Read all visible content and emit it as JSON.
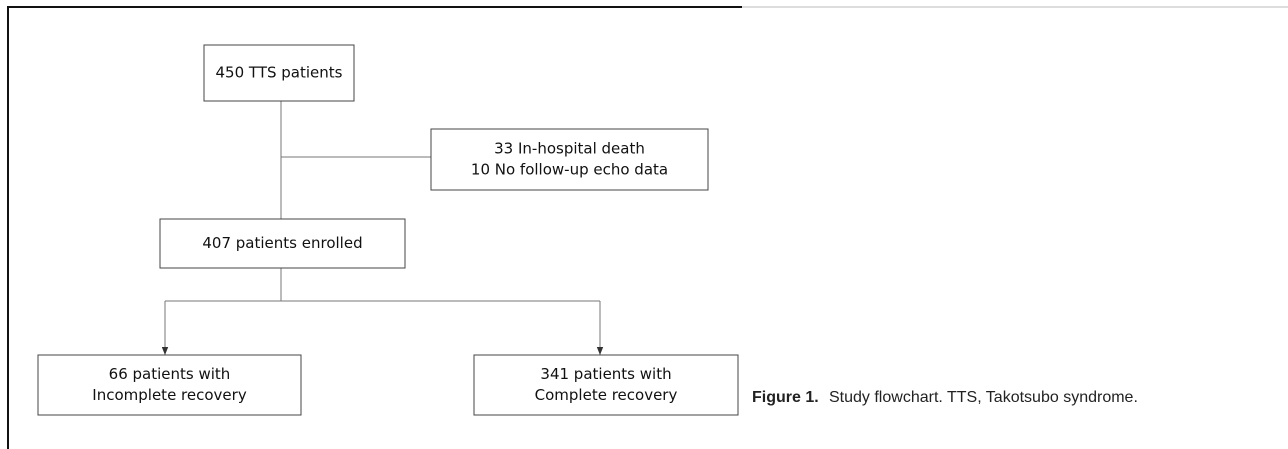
{
  "nodes": [
    {
      "lines": [
        "450 TTS patients"
      ]
    },
    {
      "lines": [
        "33 In-hospital death",
        "10 No follow-up echo data"
      ]
    },
    {
      "lines": [
        "407 patients enrolled"
      ]
    },
    {
      "lines": [
        "66 patients with",
        "Incomplete recovery"
      ]
    },
    {
      "lines": [
        "341 patients with",
        "Complete recovery"
      ]
    }
  ],
  "caption": {
    "label": "Figure 1.",
    "text": "Study flowchart. TTS, Takotsubo syndrome."
  }
}
